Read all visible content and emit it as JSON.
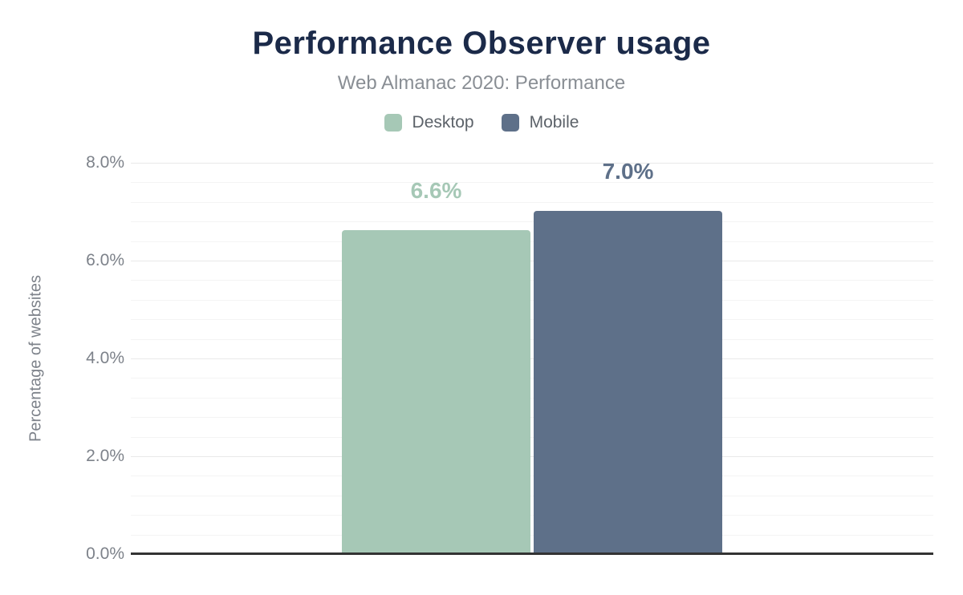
{
  "chart_data": {
    "type": "bar",
    "title": "Performance Observer usage",
    "subtitle": "Web Almanac 2020: Performance",
    "ylabel": "Percentage of websites",
    "ylim": [
      0,
      8
    ],
    "yticks": [
      {
        "value": 0,
        "label": "0.0%"
      },
      {
        "value": 2,
        "label": "2.0%"
      },
      {
        "value": 4,
        "label": "4.0%"
      },
      {
        "value": 6,
        "label": "6.0%"
      },
      {
        "value": 8,
        "label": "8.0%"
      }
    ],
    "minor_gridline_step": 0.4,
    "major_gridline_step": 2.0,
    "grid": true,
    "legend_position": "top",
    "categories": [
      ""
    ],
    "series": [
      {
        "name": "Desktop",
        "values": [
          6.6
        ],
        "value_labels": [
          "6.6%"
        ],
        "color": "#a6c8b6"
      },
      {
        "name": "Mobile",
        "values": [
          7.0
        ],
        "value_labels": [
          "7.0%"
        ],
        "color": "#5e7089"
      }
    ]
  },
  "colors": {
    "title": "#1b2a49",
    "subtitle": "#898e94",
    "axis_text": "#7d828a",
    "legend_text": "#5c6269",
    "baseline": "#333333",
    "grid_major": "#e9e9e9",
    "grid_minor": "#f4f4f4",
    "background": "#ffffff"
  }
}
